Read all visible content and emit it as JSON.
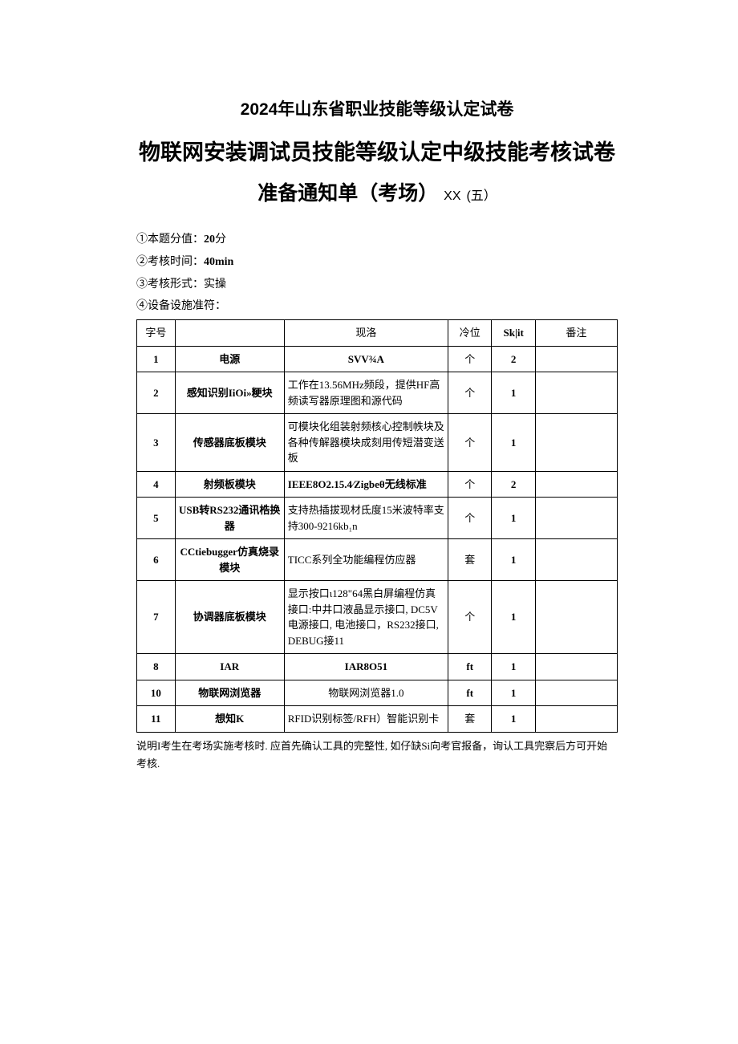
{
  "title_line1": "2024年山东省职业技能等级认定试卷",
  "title_line2": "物联网安装调试员技能等级认定中级技能考核试卷",
  "title_line3_main": "准备通知单（考场）",
  "title_line3_suffix": "XX",
  "title_line3_paren": "(五）",
  "meta": {
    "line1_prefix": "①本题分值：",
    "line1_value": "20",
    "line1_unit": "分",
    "line2_prefix": "②考核时间：",
    "line2_value": "40min",
    "line3_prefix": "③考核形式：实操",
    "line4_prefix": "④设备设施准符：",
    "line4_suffix": ""
  },
  "table": {
    "headers": [
      "字号",
      "",
      "现洛",
      "冷位",
      "Sk|it",
      "番注"
    ],
    "rows": [
      {
        "seq": "1",
        "name": "电源",
        "spec": "SVV¾A",
        "unit": "个",
        "qty": "2",
        "note": ""
      },
      {
        "seq": "2",
        "name": "感知识别IiOi»粳块",
        "spec": "工作在13.56MHz频段，提供HF高频读写器原理图和源代码",
        "unit": "个",
        "qty": "1",
        "note": ""
      },
      {
        "seq": "3",
        "name": "传感器底板模块",
        "spec": "可模块化组装射频核心控制帙块及各种传解器模块成刻用传短潜变送板",
        "unit": "个",
        "qty": "1",
        "note": ""
      },
      {
        "seq": "4",
        "name": "射频板模块",
        "spec": "IEEE8O2.15.4⁄Zigbeθ无线标准",
        "unit": "个",
        "qty": "2",
        "note": ""
      },
      {
        "seq": "5",
        "name": "USB转RS232通讯梏换器",
        "spec": "支持热插拔现材氐度15米波特率支持300-9216kb₁n",
        "unit": "个",
        "qty": "1",
        "note": ""
      },
      {
        "seq": "6",
        "name": "CCtiebugger仿真烧录模块",
        "spec": "TICC系列全功能编程仿应器",
        "unit": "套",
        "qty": "1",
        "note": ""
      },
      {
        "seq": "7",
        "name": "协调器底板模块",
        "spec": "显示按口ι128\"64黑白屏编程仿真接口:中井口液晶显示接口, DC5V电源接口, 电池接口，RS232接口, DEBUG接11",
        "unit": "个",
        "qty": "1",
        "note": ""
      },
      {
        "seq": "8",
        "name": "IAR",
        "spec": "IAR8O51",
        "unit": "ft",
        "qty": "1",
        "note": ""
      },
      {
        "seq": "10",
        "name": "物联网浏览器",
        "spec": "物联网浏览器1.0",
        "unit": "ft",
        "qty": "1",
        "note": ""
      },
      {
        "seq": "11",
        "name": "想知K",
        "spec": "RFID识别标签/RFH）智能识别卡",
        "unit": "套",
        "qty": "1",
        "note": ""
      }
    ]
  },
  "footnote": "说明I考生在考场实施考核时. 应首先确认工具的完整性, 如仔缺Si向考官报备，询认工具完察后方可开始考核."
}
